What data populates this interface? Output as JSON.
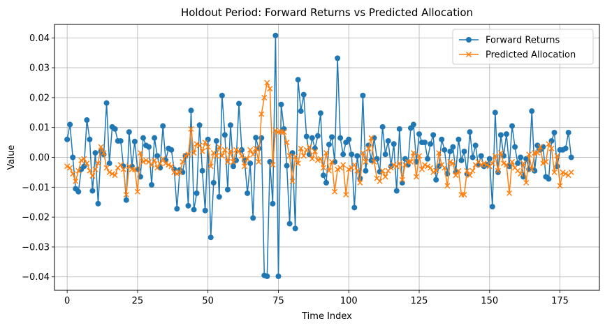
{
  "chart_data": {
    "type": "line",
    "title": "Holdout Period: Forward Returns vs Predicted Allocation",
    "xlabel": "Time Index",
    "ylabel": "Value",
    "xlim": [
      -4.5,
      189
    ],
    "ylim": [
      -0.0445,
      0.0445
    ],
    "xticks": [
      0,
      25,
      50,
      75,
      100,
      125,
      150,
      175
    ],
    "xtick_labels": [
      "0",
      "25",
      "50",
      "75",
      "100",
      "125",
      "150",
      "175"
    ],
    "yticks": [
      -0.04,
      -0.03,
      -0.02,
      -0.01,
      0.0,
      0.01,
      0.02,
      0.03,
      0.04
    ],
    "ytick_labels": [
      "−0.04",
      "−0.03",
      "−0.02",
      "−0.01",
      "0.00",
      "0.01",
      "0.02",
      "0.03",
      "0.04"
    ],
    "grid": true,
    "legend_position": "top-right",
    "series": [
      {
        "name": "Forward Returns",
        "color": "#1f77b4",
        "marker": "circle",
        "values": [
          0.006,
          0.011,
          0.0,
          -0.0105,
          -0.0115,
          -0.004,
          -0.003,
          0.0125,
          0.006,
          -0.0112,
          0.0015,
          -0.0155,
          0.002,
          0.001,
          0.0182,
          -0.002,
          0.0102,
          0.0095,
          0.0055,
          0.0055,
          -0.003,
          -0.0143,
          0.0085,
          -0.003,
          0.0053,
          -0.004,
          -0.0065,
          0.0065,
          0.004,
          0.0035,
          -0.0092,
          0.0065,
          0.0005,
          -0.0035,
          0.0105,
          -0.001,
          0.003,
          0.0025,
          -0.004,
          -0.0172,
          -0.0042,
          -0.005,
          0.0005,
          -0.0162,
          0.0157,
          -0.0175,
          -0.012,
          0.0108,
          -0.0045,
          -0.0178,
          0.006,
          -0.0268,
          -0.0085,
          0.0055,
          -0.0132,
          0.0207,
          0.0075,
          -0.0108,
          0.0108,
          -0.003,
          -0.001,
          0.018,
          0.0025,
          -0.001,
          -0.012,
          -0.002,
          -0.0203,
          0.0066,
          0.003,
          0.0065,
          -0.0395,
          -0.0398,
          -0.0015,
          -0.0155,
          0.0408,
          -0.0398,
          0.0177,
          0.0095,
          -0.0028,
          -0.0222,
          0.0015,
          -0.0238,
          0.026,
          0.0155,
          0.021,
          0.007,
          0.001,
          0.0065,
          0.003,
          0.0072,
          0.0148,
          -0.006,
          -0.0085,
          0.0043,
          0.0068,
          -0.0015,
          0.0332,
          0.0065,
          0.001,
          0.005,
          0.006,
          0.001,
          -0.0168,
          0.0005,
          -0.007,
          0.0207,
          -0.0045,
          0.004,
          -0.001,
          0.0065,
          -0.0005,
          -0.0048,
          0.0102,
          0.001,
          0.0055,
          -0.003,
          0.0045,
          -0.0112,
          0.0095,
          -0.0085,
          -0.0005,
          -0.0025,
          0.0098,
          0.011,
          -0.0015,
          0.0078,
          0.005,
          0.005,
          -0.0005,
          0.0045,
          0.0075,
          -0.0075,
          -0.003,
          0.006,
          0.0025,
          -0.0055,
          0.002,
          0.0035,
          -0.005,
          0.006,
          -0.001,
          0.002,
          -0.0055,
          0.0085,
          0.0,
          0.004,
          -0.0025,
          0.0005,
          -0.003,
          -0.0025,
          -0.0005,
          -0.0165,
          0.015,
          -0.005,
          0.0075,
          0.0005,
          0.0078,
          -0.003,
          0.0105,
          0.0035,
          -0.002,
          0.0,
          -0.0065,
          -0.0005,
          -0.004,
          0.0155,
          -0.0045,
          0.004,
          0.0025,
          0.0035,
          -0.0065,
          -0.0072,
          0.0055,
          0.0083,
          -0.003,
          0.0025,
          0.0025,
          0.003,
          0.0083,
          0.0
        ]
      },
      {
        "name": "Predicted Allocation",
        "color": "#ff7f0e",
        "marker": "x",
        "values": [
          -0.003,
          -0.0035,
          -0.0055,
          -0.008,
          -0.0045,
          -0.001,
          -0.0005,
          -0.002,
          -0.0045,
          -0.0062,
          -0.004,
          -0.002,
          0.0035,
          0.0015,
          -0.0035,
          -0.005,
          -0.0055,
          -0.006,
          -0.0035,
          -0.0025,
          -0.004,
          -0.0125,
          -0.003,
          -0.004,
          -0.004,
          -0.0115,
          0.0015,
          -0.0015,
          -0.001,
          -0.0015,
          -0.0025,
          -0.001,
          -0.0035,
          -0.002,
          -0.0005,
          -0.002,
          -0.0025,
          -0.003,
          -0.005,
          -0.0055,
          -0.005,
          -0.0015,
          0.0005,
          0.001,
          0.0095,
          0.0015,
          0.0045,
          0.004,
          0.002,
          0.005,
          0.0035,
          -0.003,
          0.0015,
          0.0005,
          0.0035,
          0.0005,
          0.0025,
          -0.0015,
          0.002,
          -0.0015,
          0.0025,
          0.002,
          0.0005,
          -0.003,
          -0.0005,
          0.0025,
          0.001,
          0.003,
          -0.0015,
          0.0145,
          0.02,
          0.025,
          0.023,
          -0.0025,
          0.009,
          0.0085,
          0.0085,
          0.0085,
          0.005,
          0.0005,
          -0.008,
          0.0002,
          -0.002,
          0.003,
          0.0005,
          0.0025,
          0.0035,
          -0.0005,
          0.002,
          -0.001,
          -0.0005,
          -0.0035,
          0.0015,
          -0.0045,
          -0.0015,
          -0.0115,
          -0.004,
          -0.0035,
          -0.0025,
          -0.0125,
          -0.004,
          -0.0035,
          -0.0025,
          -0.0045,
          -0.0085,
          0.0015,
          -0.0015,
          0.003,
          0.0065,
          -0.0015,
          -0.007,
          -0.008,
          -0.0045,
          -0.0065,
          -0.0045,
          -0.0035,
          -0.0025,
          -0.003,
          -0.002,
          -0.0075,
          -0.0025,
          -0.0015,
          -0.0015,
          0.0015,
          -0.0065,
          0.0005,
          -0.004,
          -0.0025,
          -0.003,
          -0.0035,
          -0.005,
          -0.0045,
          0.0015,
          -0.0025,
          -0.0035,
          -0.0095,
          -0.0015,
          -0.002,
          -0.006,
          -0.0045,
          -0.0125,
          -0.0125,
          -0.0045,
          -0.006,
          -0.0045,
          -0.0025,
          -0.0015,
          -0.0025,
          -0.002,
          -0.0025,
          -0.003,
          -0.002,
          0.0005,
          -0.0045,
          0.0015,
          -0.002,
          -0.0025,
          -0.012,
          -0.0015,
          -0.0035,
          -0.0045,
          -0.0055,
          -0.002,
          -0.0085,
          0.001,
          -0.004,
          0.0015,
          0.0015,
          0.0035,
          -0.002,
          -0.0015,
          0.0045,
          0.003,
          -0.005,
          0.0005,
          -0.0095,
          -0.005,
          -0.0055,
          -0.006,
          -0.005
        ]
      }
    ]
  }
}
